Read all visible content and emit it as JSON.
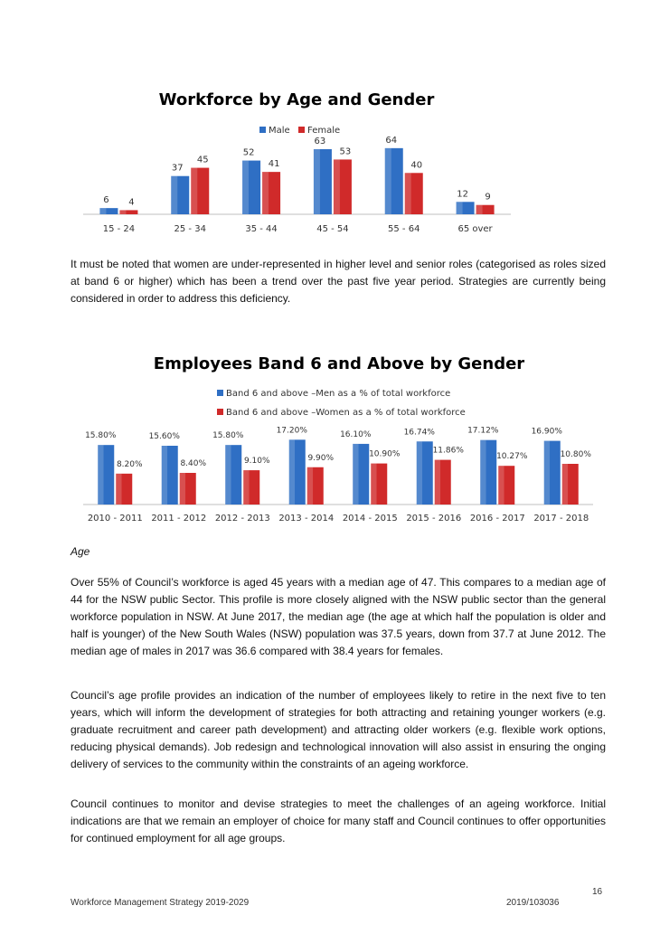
{
  "chart_data": [
    {
      "type": "bar",
      "title": "Workforce by Age and Gender",
      "categories": [
        "15 - 24",
        "25 - 34",
        "35 - 44",
        "45 - 54",
        "55 - 64",
        "65 over"
      ],
      "series": [
        {
          "name": "Male",
          "values": [
            6,
            37,
            52,
            63,
            64,
            12
          ],
          "labels": [
            "6",
            "37",
            "52",
            "63",
            "64",
            "12"
          ]
        },
        {
          "name": "Female",
          "values": [
            4,
            45,
            41,
            53,
            40,
            9
          ],
          "labels": [
            "4",
            "45",
            "41",
            "53",
            "40",
            "9"
          ]
        }
      ],
      "ylim": [
        0,
        70
      ],
      "grid": false,
      "legend": "top-center",
      "colors": [
        "#2f6fc4",
        "#d02a2a"
      ]
    },
    {
      "type": "bar",
      "title": "Employees Band 6 and Above by Gender",
      "categories": [
        "2010 - 2011",
        "2011 - 2012",
        "2012 - 2013",
        "2013 - 2014",
        "2014 - 2015",
        "2015 - 2016",
        "2016 - 2017",
        "2017 - 2018"
      ],
      "series": [
        {
          "name": "Band 6 and above –Men as a  % of total workforce",
          "values": [
            15.8,
            15.6,
            15.8,
            17.2,
            16.1,
            16.74,
            17.12,
            16.9
          ],
          "labels": [
            "15.80%",
            "15.60%",
            "15.80%",
            "17.20%",
            "16.10%",
            "16.74%",
            "17.12%",
            "16.90%"
          ]
        },
        {
          "name": "Band 6 and above –Women as a % of total workforce",
          "values": [
            8.2,
            8.4,
            9.1,
            9.9,
            10.9,
            11.86,
            10.27,
            10.8
          ],
          "labels": [
            "8.20%",
            "8.40%",
            "9.10%",
            "9.90%",
            "10.90%",
            "11.86%",
            "10.27%",
            "10.80%"
          ]
        }
      ],
      "ylim": [
        0,
        18
      ],
      "grid": false,
      "legend": "top-center",
      "colors": [
        "#2f6fc4",
        "#d02a2a"
      ]
    }
  ],
  "text": {
    "para1": "It must be noted that women are under-represented in higher level and senior roles (categorised as roles sized at band 6 or higher) which has been a trend over the past five year period. Strategies are currently being considered in order to address this deficiency.",
    "age_heading": "Age",
    "para2": "Over 55% of Council’s workforce is aged 45 years with a median age of 47. This compares to a median age of 44 for the NSW public Sector. This profile is more closely aligned with the NSW public sector than the general workforce population in NSW. At June 2017, the median age (the age at which half the population is older and half is younger) of the New South Wales (NSW) population was 37.5 years, down from 37.7 at June 2012. The median age of males in 2017 was 36.6 compared with 38.4 years for females.",
    "para3": "Council’s age profile provides an indication of the number of employees likely to retire in the next five to ten years, which will inform the development of strategies for both attracting and retaining younger workers (e.g. graduate recruitment and career path development) and attracting older workers (e.g. flexible work options, reducing physical demands). Job redesign and technological innovation will also assist in ensuring the onging delivery of services to the community within the constraints of an ageing workforce.",
    "para4": "Council continues to monitor and devise strategies to meet the challenges of an ageing workforce. Initial indications are that we remain an employer of choice for many staff and Council continues to offer opportunities for continued employment for all age groups."
  },
  "footer": {
    "page_number": "16",
    "left": "Workforce Management Strategy 2019-2029",
    "right": "2019/103036"
  }
}
